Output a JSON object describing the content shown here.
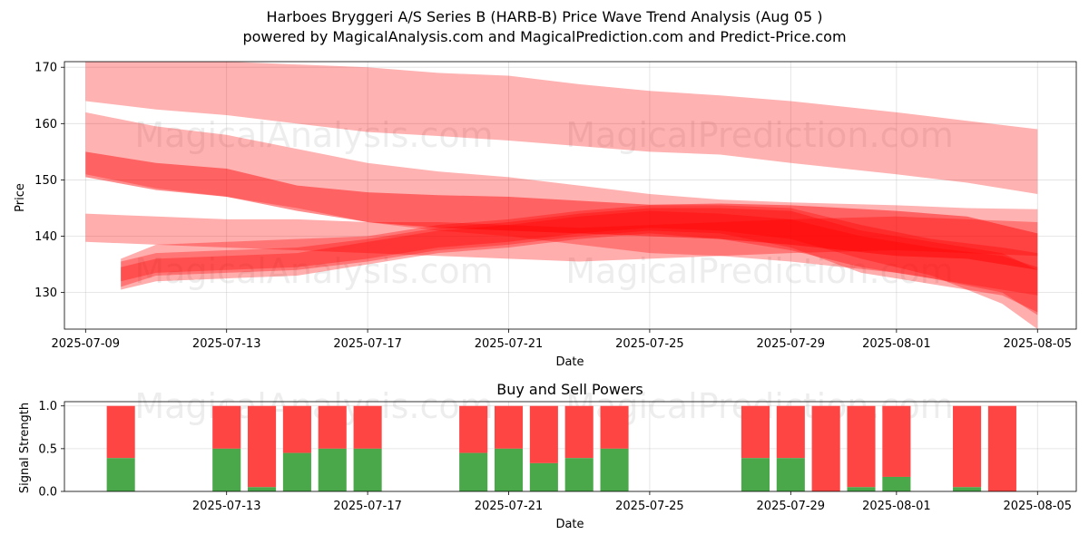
{
  "title": "Harboes Bryggeri A/S Series B (HARB-B) Price Wave Trend Analysis (Aug 05 )",
  "subtitle": "powered by MagicalAnalysis.com and MagicalPrediction.com and Predict-Price.com",
  "watermarks": [
    "MagicalAnalysis.com",
    "MagicalPrediction.com"
  ],
  "colors": {
    "band": "#ff0000",
    "buy": "#4aa84a",
    "sell": "#ff4444"
  },
  "chart_data": [
    {
      "type": "area",
      "title": "",
      "xlabel": "Date",
      "ylabel": "Price",
      "ylim": [
        123.5,
        171
      ],
      "xlim": [
        "2025-07-09",
        "2025-08-06"
      ],
      "x_ticks": [
        "2025-07-09",
        "2025-07-13",
        "2025-07-17",
        "2025-07-21",
        "2025-07-25",
        "2025-07-29",
        "2025-08-01",
        "2025-08-05"
      ],
      "y_ticks": [
        130,
        140,
        150,
        160,
        170
      ],
      "grid": true,
      "series": [
        {
          "dates": [
            "2025-07-09",
            "2025-07-11",
            "2025-07-13",
            "2025-07-15",
            "2025-07-17",
            "2025-07-19",
            "2025-07-21",
            "2025-07-23",
            "2025-07-25",
            "2025-07-27",
            "2025-07-29",
            "2025-08-01",
            "2025-08-03",
            "2025-08-05"
          ],
          "upper": [
            172,
            171.5,
            171,
            170.5,
            170,
            169,
            168.5,
            167,
            165.8,
            165,
            164,
            162,
            160.5,
            159
          ],
          "lower": [
            164,
            162.5,
            161.5,
            160,
            158.5,
            157.8,
            157,
            156,
            155,
            154.5,
            153,
            151,
            149.5,
            147.5
          ]
        },
        {
          "dates": [
            "2025-07-09",
            "2025-07-11",
            "2025-07-13",
            "2025-07-15",
            "2025-07-17",
            "2025-07-19",
            "2025-07-21",
            "2025-07-23",
            "2025-07-25",
            "2025-07-27",
            "2025-07-29",
            "2025-08-01",
            "2025-08-03",
            "2025-08-05"
          ],
          "upper": [
            162,
            159.5,
            158,
            155.5,
            153,
            151.5,
            150.5,
            149,
            147.5,
            146.5,
            146,
            145.5,
            145,
            144.8
          ],
          "lower": [
            151,
            148.5,
            147,
            145,
            142.5,
            141,
            140,
            138.5,
            137,
            136.5,
            135.5,
            133.5,
            131.5,
            129.5
          ]
        },
        {
          "dates": [
            "2025-07-09",
            "2025-07-11",
            "2025-07-13",
            "2025-07-15",
            "2025-07-17",
            "2025-07-19",
            "2025-07-21",
            "2025-07-23",
            "2025-07-25",
            "2025-07-27",
            "2025-07-29",
            "2025-08-01",
            "2025-08-03",
            "2025-08-05"
          ],
          "upper": [
            155,
            153,
            152,
            149,
            147.8,
            147.3,
            147,
            146.3,
            145.6,
            145.8,
            145.5,
            144.5,
            143.5,
            140.5
          ],
          "lower": [
            150.5,
            148.2,
            147,
            144.5,
            142.5,
            141.5,
            141,
            140.5,
            140,
            139.5,
            138.5,
            136.5,
            136,
            134
          ]
        },
        {
          "dates": [
            "2025-07-09",
            "2025-07-11",
            "2025-07-13",
            "2025-07-15",
            "2025-07-17",
            "2025-07-19",
            "2025-07-21",
            "2025-07-23",
            "2025-07-25",
            "2025-07-27",
            "2025-07-29",
            "2025-08-01",
            "2025-08-03",
            "2025-08-05"
          ],
          "upper": [
            144,
            143.5,
            143,
            143,
            142.5,
            142.5,
            142,
            141.5,
            142,
            142.5,
            143,
            143.5,
            143,
            142.5
          ],
          "lower": [
            139,
            138.5,
            138,
            137.5,
            137,
            136.5,
            136,
            135.5,
            136,
            136.5,
            137,
            137.5,
            137,
            136.5
          ]
        },
        {
          "dates": [
            "2025-07-10",
            "2025-07-11",
            "2025-07-13",
            "2025-07-15",
            "2025-07-17",
            "2025-07-19",
            "2025-07-21",
            "2025-07-23",
            "2025-07-25",
            "2025-07-27",
            "2025-07-29",
            "2025-07-31",
            "2025-08-02",
            "2025-08-04",
            "2025-08-05"
          ],
          "upper": [
            136,
            138.5,
            139,
            139.5,
            140,
            142,
            143,
            144.5,
            145.5,
            145.5,
            145,
            142,
            139.5,
            138,
            137
          ],
          "lower": [
            131,
            133,
            133.5,
            134,
            135.5,
            137.5,
            138.5,
            140,
            141,
            140.5,
            138,
            133.5,
            131.5,
            129.5,
            126.5
          ]
        },
        {
          "dates": [
            "2025-07-10",
            "2025-07-11",
            "2025-07-13",
            "2025-07-15",
            "2025-07-17",
            "2025-07-19",
            "2025-07-21",
            "2025-07-23",
            "2025-07-25",
            "2025-07-27",
            "2025-07-29",
            "2025-07-31",
            "2025-08-02",
            "2025-08-04",
            "2025-08-05"
          ],
          "upper": [
            134.5,
            136,
            136.5,
            137,
            139,
            141,
            142,
            143.5,
            144.5,
            144,
            143,
            140,
            138,
            136.5,
            134.5
          ],
          "lower": [
            130.5,
            132,
            132.5,
            133,
            135,
            137,
            138,
            139.5,
            140.5,
            139.5,
            137.5,
            134.5,
            132.5,
            130,
            126
          ]
        },
        {
          "dates": [
            "2025-07-10",
            "2025-07-11",
            "2025-07-13",
            "2025-07-15",
            "2025-07-17",
            "2025-07-19",
            "2025-07-21",
            "2025-07-23",
            "2025-07-25",
            "2025-07-27",
            "2025-07-29",
            "2025-07-31",
            "2025-08-02",
            "2025-08-04",
            "2025-08-05"
          ],
          "upper": [
            135.5,
            137,
            137.5,
            138,
            139.5,
            141.5,
            142.5,
            144,
            145,
            145,
            144.5,
            141,
            139,
            137,
            134
          ],
          "lower": [
            132,
            133.5,
            134,
            134.5,
            136,
            138,
            139,
            140.5,
            141.5,
            141,
            139.5,
            136,
            133,
            128,
            123.5
          ]
        }
      ]
    },
    {
      "type": "bar",
      "title": "Buy and Sell Powers",
      "xlabel": "Date",
      "ylabel": "Signal Strength",
      "ylim": [
        0,
        1.05
      ],
      "y_ticks": [
        0.0,
        0.5,
        1.0
      ],
      "y_tick_labels": [
        "0.0",
        "0.5",
        "1.0"
      ],
      "x_ticks": [
        "2025-07-13",
        "2025-07-17",
        "2025-07-21",
        "2025-07-25",
        "2025-07-29",
        "2025-08-01",
        "2025-08-05"
      ],
      "xlim": [
        "2025-07-09",
        "2025-08-06"
      ],
      "grid": true,
      "categories": [
        "2025-07-10",
        "2025-07-13",
        "2025-07-14",
        "2025-07-15",
        "2025-07-16",
        "2025-07-17",
        "2025-07-20",
        "2025-07-21",
        "2025-07-22",
        "2025-07-23",
        "2025-07-24",
        "2025-07-28",
        "2025-07-29",
        "2025-07-30",
        "2025-07-31",
        "2025-08-01",
        "2025-08-03",
        "2025-08-04"
      ],
      "series": [
        {
          "name": "Buy",
          "values": [
            0.39,
            0.5,
            0.05,
            0.45,
            0.5,
            0.5,
            0.45,
            0.5,
            0.33,
            0.39,
            0.5,
            0.39,
            0.39,
            0.0,
            0.05,
            0.17,
            0.05,
            0.0
          ]
        },
        {
          "name": "Sell",
          "values": [
            0.61,
            0.5,
            0.95,
            0.55,
            0.5,
            0.5,
            0.55,
            0.5,
            0.67,
            0.61,
            0.5,
            0.61,
            0.61,
            1.0,
            0.95,
            0.83,
            0.95,
            1.0
          ]
        }
      ]
    }
  ]
}
